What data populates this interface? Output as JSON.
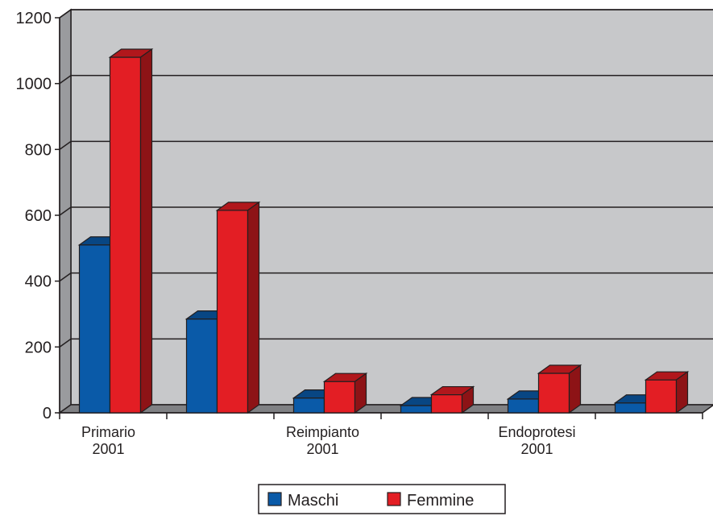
{
  "chart_data": {
    "type": "bar",
    "style": "3d-clustered",
    "categories": [
      "Primario 2001",
      "",
      "Reimpianto 2001",
      "",
      "Endoprotesi 2001",
      ""
    ],
    "category_labels": [
      [
        "Primario",
        "2001"
      ],
      [],
      [
        "Reimpianto",
        "2001"
      ],
      [],
      [
        "Endoprotesi",
        "2001"
      ],
      []
    ],
    "series": [
      {
        "name": "Maschi",
        "color": "#0a5aa8",
        "values": [
          510,
          285,
          45,
          22,
          42,
          30
        ]
      },
      {
        "name": "Femmine",
        "color": "#e31e24",
        "values": [
          1080,
          615,
          95,
          55,
          120,
          100
        ]
      }
    ],
    "y_ticks": [
      0,
      200,
      400,
      600,
      800,
      1000,
      1200
    ],
    "ylim": [
      0,
      1200
    ],
    "grid": true,
    "legend": "bottom"
  }
}
